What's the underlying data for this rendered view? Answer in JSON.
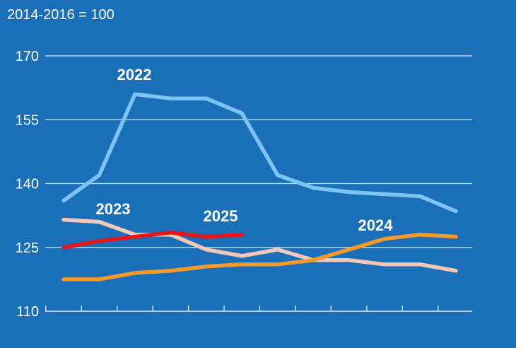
{
  "chart_data": {
    "type": "line",
    "unit_label": "2014-2016 = 100",
    "ylim": [
      110,
      170
    ],
    "y_ticks": [
      110,
      125,
      140,
      155,
      170
    ],
    "x_count": 12,
    "grid": true,
    "legend": "inline labels",
    "colors": {
      "background": "#1a6fb8",
      "gridline": "#d6e6f5",
      "axis": "#e6eef7",
      "text": "#ffffff"
    },
    "series": [
      {
        "name": "2022",
        "color": "#7cc4f2",
        "values": [
          136,
          142,
          161,
          160,
          160,
          156.5,
          142,
          139,
          138,
          137.5,
          137,
          133.5
        ]
      },
      {
        "name": "2023",
        "color": "#f5c7b8",
        "values": [
          131.5,
          131,
          128,
          128,
          124.5,
          123,
          124.5,
          122,
          122,
          121,
          121,
          119.5
        ]
      },
      {
        "name": "2024",
        "color": "#f39a2a",
        "values": [
          117.5,
          117.5,
          119,
          119.5,
          120.5,
          121,
          121,
          122,
          124.5,
          127,
          128,
          127.5
        ]
      },
      {
        "name": "2025",
        "color": "#e8151b",
        "values": [
          125,
          126.5,
          127.5,
          128.5,
          127.5,
          128
        ]
      }
    ]
  }
}
